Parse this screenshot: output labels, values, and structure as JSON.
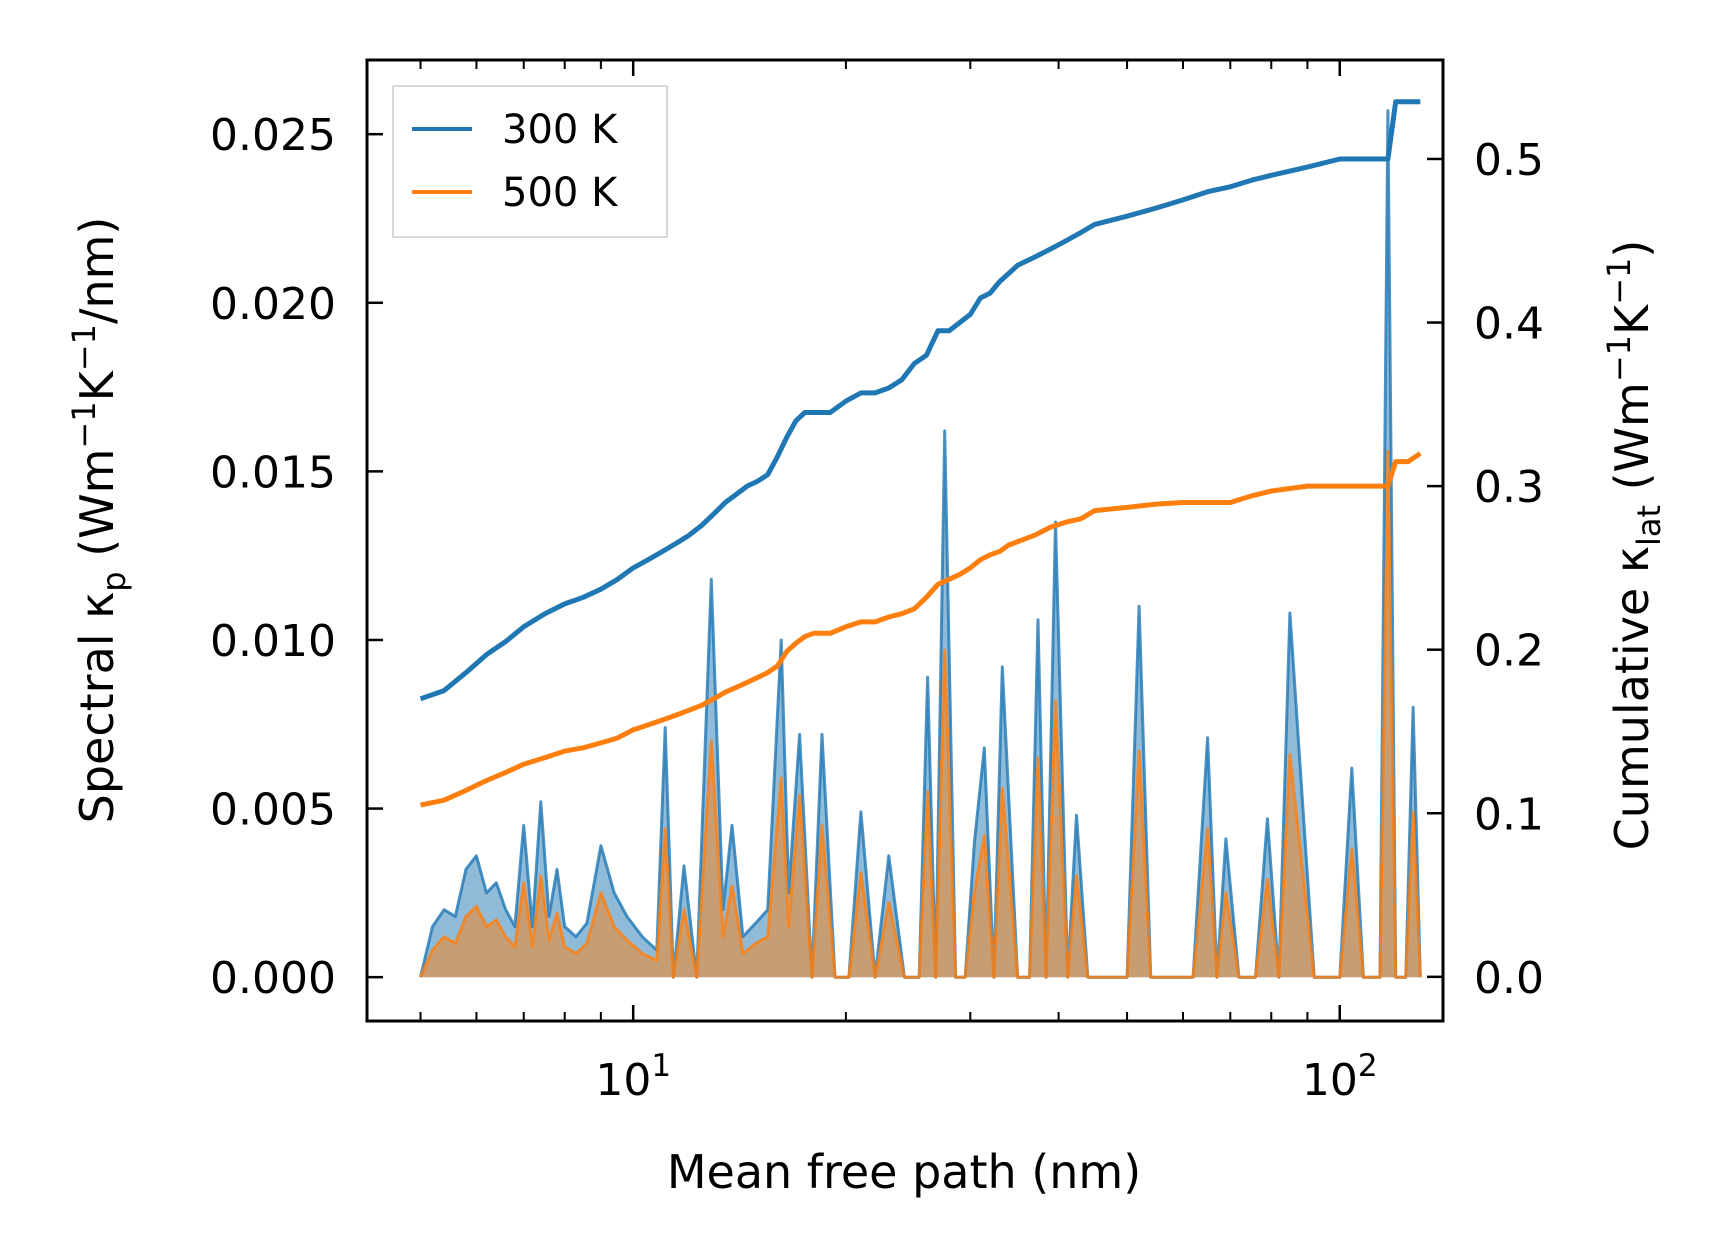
{
  "chart_data": {
    "type": "line",
    "xscale": "log",
    "xlabel": "Mean free path (nm)",
    "ylabel_left": {
      "main": "Spectral κ",
      "sub": "p",
      "unit_pre": " (Wm",
      "sup1": "−1",
      "mid": "K",
      "sup2": "−1",
      "unit_post": "/nm)"
    },
    "ylabel_right": {
      "main": "Cumulative κ",
      "sub": "lat",
      "unit_pre": " (Wm",
      "sup1": "−1",
      "mid": "K",
      "sup2": "−1",
      "unit_post": ")"
    },
    "xlim": [
      4.2,
      140
    ],
    "ylim_left": [
      -0.0013,
      0.0272
    ],
    "ylim_right": [
      -0.027,
      0.5605
    ],
    "x_major_ticks": [
      {
        "value": 10,
        "base": "10",
        "exp": "1"
      },
      {
        "value": 100,
        "base": "10",
        "exp": "2"
      }
    ],
    "x_minor_ticks": [
      5,
      6,
      7,
      8,
      9,
      20,
      30,
      40,
      50,
      60,
      70,
      80,
      90
    ],
    "left_ticks": [
      {
        "value": 0.0,
        "label": "0.000"
      },
      {
        "value": 0.005,
        "label": "0.005"
      },
      {
        "value": 0.01,
        "label": "0.010"
      },
      {
        "value": 0.015,
        "label": "0.015"
      },
      {
        "value": 0.02,
        "label": "0.020"
      },
      {
        "value": 0.025,
        "label": "0.025"
      }
    ],
    "right_ticks": [
      {
        "value": 0.0,
        "label": "0.0"
      },
      {
        "value": 0.1,
        "label": "0.1"
      },
      {
        "value": 0.2,
        "label": "0.2"
      },
      {
        "value": 0.3,
        "label": "0.3"
      },
      {
        "value": 0.4,
        "label": "0.4"
      },
      {
        "value": 0.5,
        "label": "0.5"
      }
    ],
    "legend": {
      "position": "upper-left",
      "entries": [
        {
          "label": "300 K",
          "color": "#1f77b4"
        },
        {
          "label": "500 K",
          "color": "#ff7f0e"
        }
      ]
    },
    "spectral": {
      "x": [
        5.0,
        5.2,
        5.4,
        5.6,
        5.8,
        6.0,
        6.2,
        6.4,
        6.6,
        6.8,
        7.0,
        7.2,
        7.4,
        7.6,
        7.8,
        8.0,
        8.3,
        8.6,
        9.0,
        9.4,
        9.8,
        10.3,
        10.8,
        11.1,
        11.4,
        11.8,
        12.3,
        12.9,
        13.4,
        13.8,
        14.3,
        14.9,
        15.5,
        16.2,
        16.6,
        17.2,
        17.9,
        18.5,
        19.3,
        20.2,
        21.0,
        22.0,
        23.0,
        24.2,
        25.4,
        26.1,
        26.8,
        27.6,
        28.6,
        29.5,
        30.4,
        31.4,
        32.4,
        33.3,
        35.0,
        36.4,
        37.4,
        38.4,
        39.6,
        41.2,
        42.4,
        44.0,
        46.0,
        50.0,
        52.0,
        54.0,
        58.0,
        62.0,
        65.0,
        67.0,
        69.0,
        72.0,
        76.0,
        79.0,
        82.0,
        85.0,
        92.0,
        100.0,
        104.0,
        108.0,
        114.0,
        117.0,
        120.0,
        124.0,
        127.0,
        130.0
      ],
      "series": [
        {
          "name": "300 K",
          "color": "#1f77b4",
          "values": [
            0.0,
            0.0015,
            0.002,
            0.0018,
            0.0032,
            0.0036,
            0.0025,
            0.0028,
            0.002,
            0.0015,
            0.0045,
            0.0015,
            0.0052,
            0.0018,
            0.0032,
            0.0015,
            0.0012,
            0.0016,
            0.0039,
            0.0025,
            0.0018,
            0.0012,
            0.0008,
            0.0074,
            0.0,
            0.0033,
            0.0,
            0.0118,
            0.002,
            0.0045,
            0.0012,
            0.0016,
            0.002,
            0.01,
            0.0025,
            0.0072,
            0.0,
            0.0072,
            0.0,
            0.0,
            0.0049,
            0.0,
            0.0036,
            0.0,
            0.0,
            0.0089,
            0.0,
            0.0162,
            0.0,
            0.0,
            0.004,
            0.0068,
            0.0,
            0.0092,
            0.0,
            0.0,
            0.0106,
            0.0,
            0.0135,
            0.0,
            0.0048,
            0.0,
            0.0,
            0.0,
            0.011,
            0.0,
            0.0,
            0.0,
            0.0071,
            0.0,
            0.0041,
            0.0,
            0.0,
            0.0047,
            0.0,
            0.0108,
            0.0,
            0.0,
            0.0062,
            0.0,
            0.0,
            0.0257,
            0.0,
            0.0,
            0.008,
            0.0
          ]
        },
        {
          "name": "500 K",
          "color": "#ff7f0e",
          "values": [
            0.0,
            0.0008,
            0.0012,
            0.001,
            0.0018,
            0.0021,
            0.0015,
            0.0017,
            0.0012,
            0.0009,
            0.0028,
            0.0009,
            0.003,
            0.0011,
            0.0019,
            0.0009,
            0.0007,
            0.001,
            0.0025,
            0.0015,
            0.0011,
            0.0007,
            0.0005,
            0.0044,
            0.0,
            0.002,
            0.0,
            0.007,
            0.0012,
            0.0027,
            0.0007,
            0.001,
            0.0012,
            0.0059,
            0.0015,
            0.0054,
            0.0,
            0.0045,
            0.0,
            0.0,
            0.0031,
            0.0,
            0.0022,
            0.0,
            0.0,
            0.0055,
            0.0,
            0.0097,
            0.0,
            0.0,
            0.0025,
            0.0042,
            0.0,
            0.0056,
            0.0,
            0.0,
            0.0065,
            0.0,
            0.0082,
            0.0,
            0.003,
            0.0,
            0.0,
            0.0,
            0.0067,
            0.0,
            0.0,
            0.0,
            0.0044,
            0.0,
            0.0025,
            0.0,
            0.0,
            0.0029,
            0.0,
            0.0066,
            0.0,
            0.0,
            0.0038,
            0.0,
            0.0,
            0.0156,
            0.0,
            0.0,
            0.0049,
            0.0
          ]
        }
      ]
    },
    "cumulative": {
      "series": [
        {
          "name": "300 K",
          "color": "#1f77b4",
          "x": [
            5.0,
            5.4,
            5.8,
            6.2,
            6.6,
            7.0,
            7.5,
            8.0,
            8.5,
            9.0,
            9.5,
            10.0,
            10.5,
            11.0,
            11.5,
            12.0,
            12.5,
            13.0,
            13.5,
            14.0,
            14.5,
            15.0,
            15.5,
            16.0,
            16.5,
            17.0,
            17.5,
            18.0,
            18.5,
            19.0,
            20.0,
            21.0,
            22.0,
            23.0,
            24.0,
            25.0,
            26.0,
            27.0,
            28.0,
            29.0,
            30.0,
            31.0,
            32.0,
            33.0,
            34.0,
            35.0,
            37.0,
            39.0,
            41.0,
            43.0,
            45.0,
            50.0,
            55.0,
            60.0,
            65.0,
            70.0,
            75.0,
            80.0,
            90.0,
            100.0,
            110.0,
            117.0,
            120.0,
            125.0,
            130.0
          ],
          "values": [
            0.17,
            0.175,
            0.186,
            0.197,
            0.205,
            0.214,
            0.222,
            0.228,
            0.232,
            0.237,
            0.243,
            0.25,
            0.255,
            0.26,
            0.265,
            0.27,
            0.276,
            0.283,
            0.29,
            0.295,
            0.3,
            0.303,
            0.307,
            0.318,
            0.33,
            0.34,
            0.345,
            0.345,
            0.345,
            0.345,
            0.352,
            0.357,
            0.357,
            0.36,
            0.365,
            0.375,
            0.38,
            0.395,
            0.395,
            0.4,
            0.405,
            0.415,
            0.418,
            0.425,
            0.43,
            0.435,
            0.44,
            0.445,
            0.45,
            0.455,
            0.46,
            0.465,
            0.47,
            0.475,
            0.48,
            0.483,
            0.487,
            0.49,
            0.495,
            0.5,
            0.5,
            0.5,
            0.535,
            0.535,
            0.535
          ]
        },
        {
          "name": "500 K",
          "color": "#ff7f0e",
          "x": [
            5.0,
            5.4,
            5.8,
            6.2,
            6.6,
            7.0,
            7.5,
            8.0,
            8.5,
            9.0,
            9.5,
            10.0,
            10.5,
            11.0,
            11.5,
            12.0,
            12.5,
            13.0,
            13.5,
            14.0,
            14.5,
            15.0,
            15.5,
            16.0,
            16.5,
            17.0,
            17.5,
            18.0,
            18.5,
            19.0,
            20.0,
            21.0,
            22.0,
            23.0,
            24.0,
            25.0,
            26.0,
            27.0,
            28.0,
            29.0,
            30.0,
            31.0,
            32.0,
            33.0,
            34.0,
            35.0,
            37.0,
            39.0,
            41.0,
            43.0,
            45.0,
            50.0,
            55.0,
            60.0,
            65.0,
            70.0,
            75.0,
            80.0,
            90.0,
            100.0,
            110.0,
            117.0,
            120.0,
            125.0,
            130.0
          ],
          "values": [
            0.105,
            0.108,
            0.114,
            0.12,
            0.125,
            0.13,
            0.134,
            0.138,
            0.14,
            0.143,
            0.146,
            0.151,
            0.154,
            0.157,
            0.16,
            0.163,
            0.166,
            0.17,
            0.174,
            0.177,
            0.18,
            0.183,
            0.186,
            0.19,
            0.199,
            0.204,
            0.208,
            0.21,
            0.21,
            0.21,
            0.214,
            0.217,
            0.217,
            0.22,
            0.222,
            0.225,
            0.232,
            0.24,
            0.243,
            0.246,
            0.25,
            0.255,
            0.258,
            0.26,
            0.264,
            0.266,
            0.27,
            0.275,
            0.278,
            0.28,
            0.285,
            0.287,
            0.289,
            0.29,
            0.29,
            0.29,
            0.294,
            0.297,
            0.3,
            0.3,
            0.3,
            0.3,
            0.315,
            0.315,
            0.32
          ]
        }
      ]
    }
  }
}
